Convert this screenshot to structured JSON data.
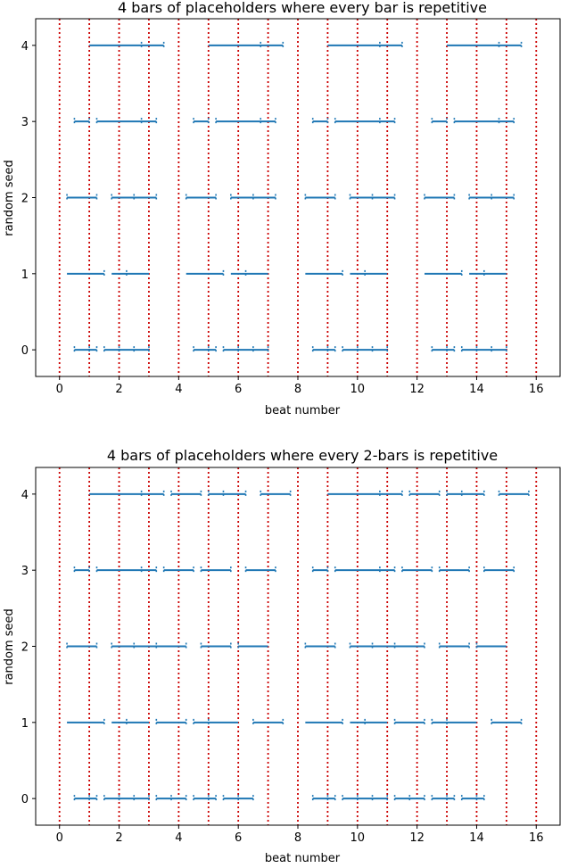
{
  "chart_data": [
    {
      "type": "line",
      "title": "4 bars of placeholders where every bar is repetitive",
      "xlabel": "beat number",
      "ylabel": "random seed",
      "xlim": [
        -0.8,
        16.8
      ],
      "ylim": [
        -0.35,
        4.35
      ],
      "xticks": [
        0,
        2,
        4,
        6,
        8,
        10,
        12,
        14,
        16
      ],
      "yticks": [
        0,
        1,
        2,
        3,
        4
      ],
      "colors": {
        "segment": "#1f77b4",
        "beat_line": "#cc0000"
      },
      "vlines": [
        0,
        1,
        2,
        3,
        4,
        5,
        6,
        7,
        8,
        9,
        10,
        11,
        12,
        13,
        14,
        15,
        16
      ],
      "rows": [
        {
          "seed": 0,
          "segments": [
            [
              0.5,
              1.25
            ],
            [
              1.5,
              3.0
            ],
            [
              4.5,
              5.25
            ],
            [
              5.5,
              7.0
            ],
            [
              8.5,
              9.25
            ],
            [
              9.5,
              11.0
            ],
            [
              12.5,
              13.25
            ],
            [
              13.5,
              15.0
            ]
          ],
          "markers": [
            0.5,
            1.0,
            1.25,
            1.5,
            2.0,
            2.5,
            3.0,
            4.5,
            5.0,
            5.25,
            5.5,
            6.0,
            6.5,
            7.0,
            8.5,
            9.0,
            9.25,
            9.5,
            10.0,
            10.5,
            11.0,
            12.5,
            13.0,
            13.25,
            13.5,
            14.0,
            14.5,
            15.0
          ]
        },
        {
          "seed": 1,
          "segments": [
            [
              0.25,
              1.5
            ],
            [
              1.75,
              3.0
            ],
            [
              4.25,
              5.5
            ],
            [
              5.75,
              7.0
            ],
            [
              8.25,
              9.5
            ],
            [
              9.75,
              11.0
            ],
            [
              12.25,
              13.5
            ],
            [
              13.75,
              15.0
            ]
          ],
          "markers": [
            1.5,
            2.25,
            5.5,
            6.25,
            9.5,
            10.25,
            13.5,
            14.25
          ]
        },
        {
          "seed": 2,
          "segments": [
            [
              0.25,
              1.25
            ],
            [
              1.75,
              3.25
            ],
            [
              4.25,
              5.25
            ],
            [
              5.75,
              7.25
            ],
            [
              8.25,
              9.25
            ],
            [
              9.75,
              11.25
            ],
            [
              12.25,
              13.25
            ],
            [
              13.75,
              15.25
            ]
          ],
          "markers": [
            0.25,
            1.25,
            1.75,
            2.5,
            3.25,
            4.25,
            5.25,
            5.75,
            6.5,
            7.25,
            8.25,
            9.25,
            9.75,
            10.5,
            11.25,
            12.25,
            13.25,
            13.75,
            14.5,
            15.25
          ]
        },
        {
          "seed": 3,
          "segments": [
            [
              0.5,
              1.0
            ],
            [
              1.25,
              3.25
            ],
            [
              4.5,
              5.0
            ],
            [
              5.25,
              7.25
            ],
            [
              8.5,
              9.0
            ],
            [
              9.25,
              11.25
            ],
            [
              12.5,
              13.0
            ],
            [
              13.25,
              15.25
            ]
          ],
          "markers": [
            0.5,
            1.0,
            1.25,
            2.75,
            3.25,
            4.5,
            5.0,
            5.25,
            6.75,
            7.25,
            8.5,
            9.0,
            9.25,
            10.75,
            11.25,
            12.5,
            13.0,
            13.25,
            14.75,
            15.25
          ]
        },
        {
          "seed": 4,
          "segments": [
            [
              1.0,
              3.5
            ],
            [
              5.0,
              7.5
            ],
            [
              9.0,
              11.5
            ],
            [
              13.0,
              15.5
            ]
          ],
          "markers": [
            2.75,
            3.5,
            6.75,
            7.5,
            10.75,
            11.5,
            14.75,
            15.5
          ]
        }
      ]
    },
    {
      "type": "line",
      "title": "4 bars of placeholders where every 2-bars is repetitive",
      "xlabel": "beat number",
      "ylabel": "random seed",
      "xlim": [
        -0.8,
        16.8
      ],
      "ylim": [
        -0.35,
        4.35
      ],
      "xticks": [
        0,
        2,
        4,
        6,
        8,
        10,
        12,
        14,
        16
      ],
      "yticks": [
        0,
        1,
        2,
        3,
        4
      ],
      "colors": {
        "segment": "#1f77b4",
        "beat_line": "#cc0000"
      },
      "vlines": [
        0,
        1,
        2,
        3,
        4,
        5,
        6,
        7,
        8,
        9,
        10,
        11,
        12,
        13,
        14,
        15,
        16
      ],
      "rows": [
        {
          "seed": 0,
          "segments": [
            [
              0.5,
              1.25
            ],
            [
              1.5,
              3.0
            ],
            [
              3.25,
              4.25
            ],
            [
              4.5,
              5.25
            ],
            [
              5.5,
              6.5
            ],
            [
              8.5,
              9.25
            ],
            [
              9.5,
              11.0
            ],
            [
              11.25,
              12.25
            ],
            [
              12.5,
              13.25
            ],
            [
              13.5,
              14.25
            ]
          ],
          "markers": [
            0.5,
            1.0,
            1.25,
            1.5,
            2.0,
            2.5,
            3.0,
            3.25,
            3.75,
            4.25,
            4.5,
            5.0,
            5.25,
            5.5,
            6.0,
            6.5,
            8.5,
            9.0,
            9.25,
            9.5,
            10.0,
            10.5,
            11.0,
            11.25,
            11.75,
            12.25,
            12.5,
            13.0,
            13.25,
            13.5,
            14.0,
            14.25
          ]
        },
        {
          "seed": 1,
          "segments": [
            [
              0.25,
              1.5
            ],
            [
              1.75,
              3.0
            ],
            [
              3.25,
              4.25
            ],
            [
              4.5,
              6.0
            ],
            [
              6.5,
              7.5
            ],
            [
              8.25,
              9.5
            ],
            [
              9.75,
              11.0
            ],
            [
              11.25,
              12.25
            ],
            [
              12.5,
              14.0
            ],
            [
              14.5,
              15.5
            ]
          ],
          "markers": [
            1.5,
            2.25,
            3.25,
            4.25,
            4.5,
            5.0,
            6.5,
            7.5,
            9.5,
            10.25,
            11.25,
            12.25,
            12.5,
            13.0,
            14.5,
            15.5
          ]
        },
        {
          "seed": 2,
          "segments": [
            [
              0.25,
              1.25
            ],
            [
              1.75,
              4.25
            ],
            [
              4.75,
              5.75
            ],
            [
              6.0,
              7.0
            ],
            [
              8.25,
              9.25
            ],
            [
              9.75,
              12.25
            ],
            [
              12.75,
              13.75
            ],
            [
              14.0,
              15.0
            ]
          ],
          "markers": [
            0.25,
            1.25,
            1.75,
            2.5,
            3.25,
            4.25,
            4.75,
            5.75,
            6.0,
            8.25,
            9.25,
            9.75,
            10.5,
            11.25,
            12.25,
            12.75,
            13.75,
            14.0
          ]
        },
        {
          "seed": 3,
          "segments": [
            [
              0.5,
              1.0
            ],
            [
              1.25,
              3.25
            ],
            [
              3.5,
              4.5
            ],
            [
              4.75,
              5.75
            ],
            [
              6.25,
              7.25
            ],
            [
              8.5,
              9.0
            ],
            [
              9.25,
              11.25
            ],
            [
              11.5,
              12.5
            ],
            [
              12.75,
              13.75
            ],
            [
              14.25,
              15.25
            ]
          ],
          "markers": [
            0.5,
            1.0,
            1.25,
            2.75,
            3.25,
            3.5,
            4.5,
            4.75,
            5.75,
            6.25,
            7.25,
            8.5,
            9.0,
            9.25,
            10.75,
            11.25,
            11.5,
            12.5,
            12.75,
            13.75,
            14.25,
            15.25
          ]
        },
        {
          "seed": 4,
          "segments": [
            [
              1.0,
              3.5
            ],
            [
              3.75,
              4.75
            ],
            [
              5.0,
              6.25
            ],
            [
              6.75,
              7.75
            ],
            [
              9.0,
              11.5
            ],
            [
              11.75,
              12.75
            ],
            [
              13.0,
              14.25
            ],
            [
              14.75,
              15.75
            ]
          ],
          "markers": [
            2.75,
            3.5,
            3.75,
            4.75,
            5.0,
            5.5,
            6.25,
            6.75,
            7.75,
            10.75,
            11.5,
            11.75,
            12.75,
            13.0,
            13.5,
            14.25,
            14.75,
            15.75
          ]
        }
      ]
    }
  ]
}
